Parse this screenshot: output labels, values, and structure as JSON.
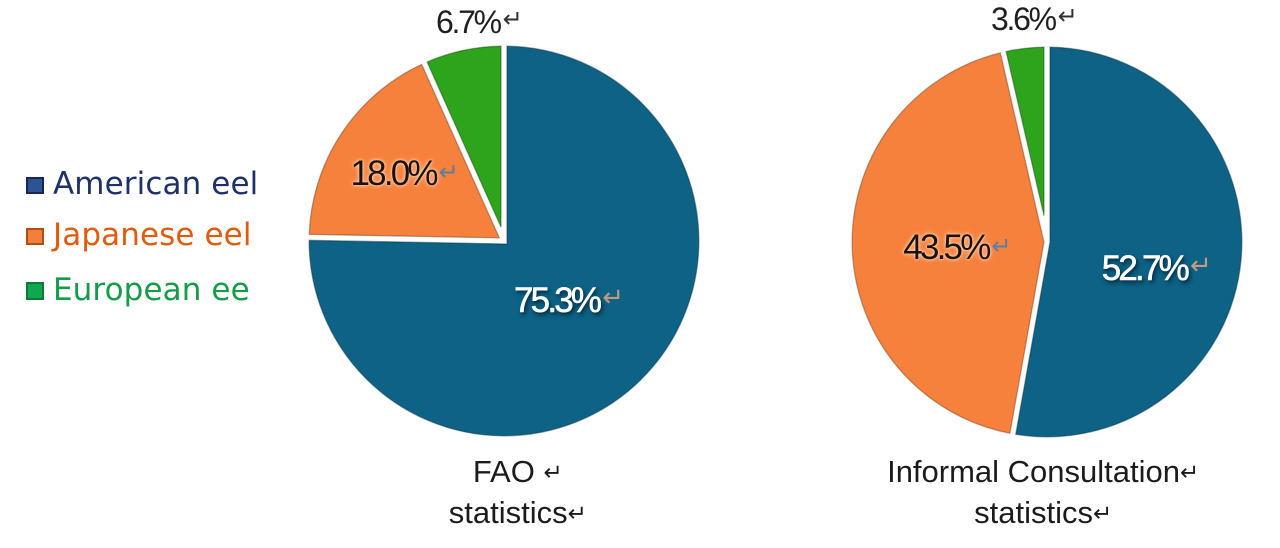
{
  "page": {
    "background": "#ffffff"
  },
  "return_mark": "↵",
  "legend": {
    "items": [
      {
        "label": "American eel",
        "text_color": "#1e3269",
        "marker_fill": "#2e5394",
        "marker_border": "#16265b"
      },
      {
        "label": "Japanese eel",
        "text_color": "#e25b0d",
        "marker_fill": "#f0803c",
        "marker_border": "#b34e12"
      },
      {
        "label": "European ee",
        "text_color": "#149c49",
        "marker_fill": "#10a750",
        "marker_border": "#0b7a3a"
      }
    ]
  },
  "chart_data": [
    {
      "type": "pie",
      "title_lines": [
        {
          "text": "FAO ",
          "mark": "↵"
        },
        {
          "text": "statistics",
          "mark": "↵"
        }
      ],
      "categories": [
        "American eel",
        "Japanese eel",
        "European ee"
      ],
      "values": [
        75.3,
        18.0,
        6.7
      ],
      "unit": "%",
      "start_angle_deg": 0,
      "direction": "clockwise",
      "slice_gap_color": "#ffffff",
      "slice_colors": [
        "#0d6285",
        "#f6813d",
        "#2ea41c"
      ],
      "labels": [
        {
          "text": "75.3%",
          "placement": "inside",
          "color": "#ffffff",
          "arrow_color": "#c4977f"
        },
        {
          "text": "18.0%",
          "placement": "inside",
          "color": "#1c1208",
          "arrow_color": "#5d7da3"
        },
        {
          "text": "6.7%",
          "placement": "outside",
          "color": "#1f1f1f",
          "arrow_color": "#2f2f2f"
        }
      ]
    },
    {
      "type": "pie",
      "title_lines": [
        {
          "text": "Informal Consultation",
          "mark": "↵"
        },
        {
          "text": "statistics",
          "mark": "↵"
        }
      ],
      "categories": [
        "American eel",
        "Japanese eel",
        "European ee"
      ],
      "values": [
        52.7,
        43.5,
        3.6
      ],
      "unit": "%",
      "start_angle_deg": 0,
      "direction": "clockwise",
      "slice_gap_color": "#ffffff",
      "slice_colors": [
        "#0d6285",
        "#f6813d",
        "#2ea41c"
      ],
      "labels": [
        {
          "text": "52.7%",
          "placement": "inside",
          "color": "#ffffff",
          "arrow_color": "#c59a80"
        },
        {
          "text": "43.5%",
          "placement": "inside",
          "color": "#1c1208",
          "arrow_color": "#5b7ea6"
        },
        {
          "text": "3.6%",
          "placement": "outside",
          "color": "#1f1f1f",
          "arrow_color": "#2f2f2f"
        }
      ]
    }
  ]
}
